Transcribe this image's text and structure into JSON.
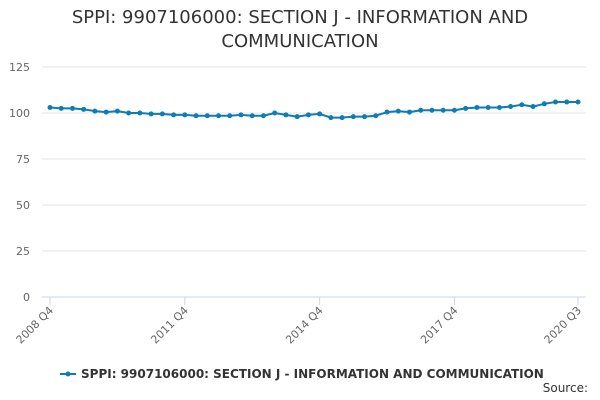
{
  "chart_data": {
    "type": "line",
    "title": "SPPI: 9907106000: SECTION J - INFORMATION AND COMMUNICATION",
    "categories": [
      "2008 Q4",
      null,
      null,
      null,
      null,
      null,
      null,
      null,
      null,
      null,
      null,
      null,
      "2011 Q4",
      null,
      null,
      null,
      null,
      null,
      null,
      null,
      null,
      null,
      null,
      null,
      "2014 Q4",
      null,
      null,
      null,
      null,
      null,
      null,
      null,
      null,
      null,
      null,
      null,
      "2017 Q4",
      null,
      null,
      null,
      null,
      null,
      null,
      null,
      null,
      null,
      null,
      "2020 Q3"
    ],
    "series": [
      {
        "name": "SPPI: 9907106000: SECTION J - INFORMATION AND COMMUNICATION",
        "color": "#0f7cb4",
        "values": [
          103,
          102.5,
          102.5,
          102,
          101,
          100.5,
          101,
          100,
          100,
          99.5,
          99.5,
          99,
          99,
          98.5,
          98.5,
          98.5,
          98.5,
          99,
          98.5,
          98.5,
          100,
          99,
          98,
          99,
          99.5,
          97.5,
          97.5,
          98,
          98,
          98.5,
          100.5,
          101,
          100.5,
          101.5,
          101.5,
          101.5,
          101.5,
          102.5,
          103,
          103,
          103,
          103.5,
          104.5,
          103.5,
          105,
          106,
          106,
          106
        ]
      }
    ],
    "ylim": [
      0,
      125
    ],
    "yticks": [
      0,
      25,
      50,
      75,
      100,
      125
    ],
    "grid": true,
    "legend": "bottom",
    "source": "Source:"
  }
}
